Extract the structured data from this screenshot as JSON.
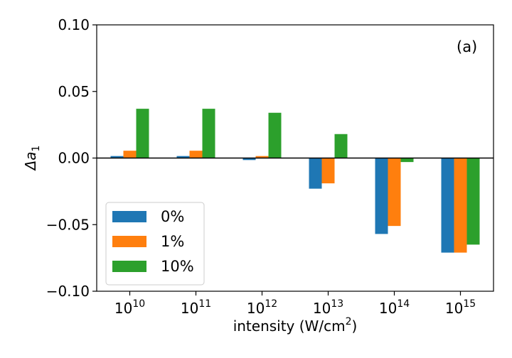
{
  "chart_data": {
    "type": "bar",
    "panel_label": "(a)",
    "xlabel": "intensity (W/cm",
    "xlabel_sup": "2",
    "xlabel_end": ")",
    "ylabel": "Δa",
    "ylabel_sub": "1",
    "ylim": [
      -0.1,
      0.1
    ],
    "yticks": [
      {
        "value": 0.1,
        "label": "0.10"
      },
      {
        "value": 0.05,
        "label": "0.05"
      },
      {
        "value": 0.0,
        "label": "0.00"
      },
      {
        "value": -0.05,
        "label": "−0.05"
      },
      {
        "value": -0.1,
        "label": "−0.10"
      }
    ],
    "categories": [
      {
        "base": "10",
        "exp": "10"
      },
      {
        "base": "10",
        "exp": "11"
      },
      {
        "base": "10",
        "exp": "12"
      },
      {
        "base": "10",
        "exp": "13"
      },
      {
        "base": "10",
        "exp": "14"
      },
      {
        "base": "10",
        "exp": "15"
      }
    ],
    "series": [
      {
        "name": "0%",
        "color": "#1f77b4",
        "values": [
          0.0015,
          0.0015,
          -0.0015,
          -0.023,
          -0.057,
          -0.071
        ]
      },
      {
        "name": "1%",
        "color": "#ff7f0e",
        "values": [
          0.0055,
          0.0055,
          0.0015,
          -0.019,
          -0.051,
          -0.071
        ]
      },
      {
        "name": "10%",
        "color": "#2ca02c",
        "values": [
          0.037,
          0.037,
          0.034,
          0.018,
          -0.003,
          -0.065
        ]
      }
    ],
    "legend_position": "lower-left",
    "grid": false
  }
}
